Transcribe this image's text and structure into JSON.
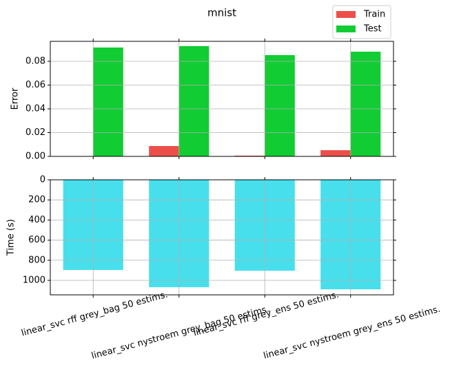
{
  "chart_data": [
    {
      "type": "grouped-bar",
      "title": "mnist",
      "ylabel": "Error",
      "series": [
        {
          "name": "Train",
          "color": "#ec4f4a",
          "values": [
            0,
            0.0087,
            0.0006,
            0.0052
          ]
        },
        {
          "name": "Test",
          "color": "#12cc33",
          "values": [
            0.0916,
            0.0928,
            0.0852,
            0.0881
          ]
        }
      ],
      "ylim": [
        0,
        0.0968
      ],
      "yticks": [
        {
          "value": 0,
          "label": "0.00"
        },
        {
          "value": 0.02,
          "label": "0.02"
        },
        {
          "value": 0.04,
          "label": "0.04"
        },
        {
          "value": 0.06,
          "label": "0.06"
        },
        {
          "value": 0.08,
          "label": "0.08"
        }
      ],
      "grid": true,
      "legend": "upper right"
    },
    {
      "type": "bar",
      "ylabel": "Time (s)",
      "categories": [
        "linear_svc rff grey_bag 50 estims.",
        "linear_svc nystroem grey_bag 50 estims.",
        "linear_svc rff grey_ens 50 estims.",
        "linear_svc nystroem grey_ens 50 estims."
      ],
      "values": [
        897,
        1068,
        904,
        1089
      ],
      "color": "#48dfec",
      "ylim": [
        0,
        1144
      ],
      "yticks": [
        0,
        200,
        400,
        600,
        800,
        1000
      ],
      "inverted": true,
      "grid": true
    }
  ]
}
